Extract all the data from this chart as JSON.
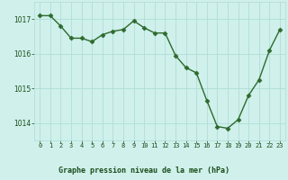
{
  "x": [
    0,
    1,
    2,
    3,
    4,
    5,
    6,
    7,
    8,
    9,
    10,
    11,
    12,
    13,
    14,
    15,
    16,
    17,
    18,
    19,
    20,
    21,
    22,
    23
  ],
  "y": [
    1017.1,
    1017.1,
    1016.8,
    1016.45,
    1016.45,
    1016.35,
    1016.55,
    1016.65,
    1016.7,
    1016.95,
    1016.75,
    1016.6,
    1016.6,
    1015.95,
    1015.6,
    1015.45,
    1014.65,
    1013.9,
    1013.85,
    1014.1,
    1014.8,
    1015.25,
    1016.1,
    1016.7
  ],
  "ylim": [
    1013.5,
    1017.5
  ],
  "yticks": [
    1014,
    1015,
    1016,
    1017
  ],
  "xlim": [
    -0.5,
    23.5
  ],
  "xticks": [
    0,
    1,
    2,
    3,
    4,
    5,
    6,
    7,
    8,
    9,
    10,
    11,
    12,
    13,
    14,
    15,
    16,
    17,
    18,
    19,
    20,
    21,
    22,
    23
  ],
  "xlabel": "Graphe pression niveau de la mer (hPa)",
  "line_color": "#2d6a2d",
  "marker_color": "#2d6a2d",
  "bg_color": "#cff0eb",
  "grid_color": "#b0ddd7",
  "tick_label_color": "#1a4d1a",
  "bottom_label_color": "#1a4d1a"
}
